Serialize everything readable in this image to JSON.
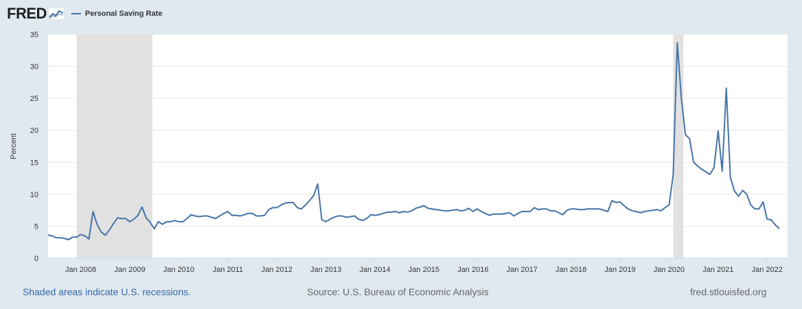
{
  "header": {
    "logo_text": "FRED",
    "logo_icon": "fred-chart-icon"
  },
  "footer": {
    "recession_note": "Shaded areas indicate U.S. recessions.",
    "source": "Source: U.S. Bureau of Economic Analysis",
    "site": "fred.stlouisfed.org"
  },
  "colors": {
    "series": "#4572a7",
    "recession": "#e1e1e1",
    "background": "#e1e9f0",
    "plot": "#ffffff",
    "grid": "#e6e6e6"
  },
  "chart_data": {
    "type": "line",
    "title": "",
    "xlabel": "",
    "ylabel": "Percent",
    "ylim": [
      0,
      35
    ],
    "yticks": [
      0,
      5,
      10,
      15,
      20,
      25,
      30,
      35
    ],
    "x_range": [
      "2007-05",
      "2022-06"
    ],
    "xticks": [
      {
        "date": "2008-01",
        "label": "Jan 2008"
      },
      {
        "date": "2009-01",
        "label": "Jan 2009"
      },
      {
        "date": "2010-01",
        "label": "Jan 2010"
      },
      {
        "date": "2011-01",
        "label": "Jan 2011"
      },
      {
        "date": "2012-01",
        "label": "Jan 2012"
      },
      {
        "date": "2013-01",
        "label": "Jan 2013"
      },
      {
        "date": "2014-01",
        "label": "Jan 2014"
      },
      {
        "date": "2015-01",
        "label": "Jan 2015"
      },
      {
        "date": "2016-01",
        "label": "Jan 2016"
      },
      {
        "date": "2017-01",
        "label": "Jan 2017"
      },
      {
        "date": "2018-01",
        "label": "Jan 2018"
      },
      {
        "date": "2019-01",
        "label": "Jan 2019"
      },
      {
        "date": "2020-01",
        "label": "Jan 2020"
      },
      {
        "date": "2021-01",
        "label": "Jan 2021"
      },
      {
        "date": "2022-01",
        "label": "Jan 2022"
      }
    ],
    "recessions": [
      {
        "start": "2007-12",
        "end": "2009-06"
      },
      {
        "start": "2020-02",
        "end": "2020-04"
      }
    ],
    "legend_position": "top-left",
    "grid": true,
    "series": [
      {
        "name": "Personal Saving Rate",
        "start": "2007-05",
        "frequency": "monthly",
        "values": [
          3.6,
          3.5,
          3.2,
          3.2,
          3.1,
          2.9,
          3.3,
          3.3,
          3.7,
          3.5,
          3.0,
          7.3,
          5.3,
          4.1,
          3.6,
          4.4,
          5.4,
          6.3,
          6.2,
          6.2,
          5.7,
          6.1,
          6.7,
          8.0,
          6.3,
          5.6,
          4.6,
          5.7,
          5.3,
          5.7,
          5.7,
          5.9,
          5.7,
          5.7,
          6.2,
          6.8,
          6.6,
          6.5,
          6.6,
          6.6,
          6.4,
          6.2,
          6.6,
          7.0,
          7.3,
          6.7,
          6.7,
          6.6,
          6.8,
          7.0,
          7.0,
          6.6,
          6.6,
          6.7,
          7.6,
          7.9,
          7.9,
          8.3,
          8.6,
          8.7,
          8.7,
          7.9,
          7.7,
          8.3,
          9.0,
          9.8,
          11.6,
          6.0,
          5.7,
          6.1,
          6.4,
          6.6,
          6.6,
          6.4,
          6.5,
          6.6,
          6.1,
          5.9,
          6.2,
          6.8,
          6.7,
          6.8,
          7.0,
          7.2,
          7.2,
          7.3,
          7.1,
          7.3,
          7.2,
          7.4,
          7.8,
          8.0,
          8.2,
          7.8,
          7.7,
          7.6,
          7.5,
          7.4,
          7.4,
          7.5,
          7.6,
          7.4,
          7.5,
          7.8,
          7.3,
          7.7,
          7.3,
          7.0,
          6.7,
          6.9,
          6.9,
          6.9,
          7.0,
          7.1,
          6.6,
          7.0,
          7.3,
          7.3,
          7.3,
          7.9,
          7.6,
          7.7,
          7.7,
          7.4,
          7.4,
          7.1,
          6.8,
          7.5,
          7.7,
          7.7,
          7.6,
          7.6,
          7.7,
          7.7,
          7.7,
          7.7,
          7.5,
          7.3,
          9.0,
          8.7,
          8.8,
          8.2,
          7.7,
          7.4,
          7.3,
          7.1,
          7.3,
          7.4,
          7.5,
          7.6,
          7.4,
          7.9,
          8.3,
          13.0,
          33.7,
          25.0,
          19.3,
          18.7,
          15.0,
          14.4,
          13.9,
          13.5,
          13.1,
          14.2,
          19.9,
          13.6,
          26.6,
          12.6,
          10.5,
          9.7,
          10.6,
          10.0,
          8.3,
          7.7,
          7.7,
          8.8,
          6.1,
          6.0,
          5.2,
          4.6
        ]
      }
    ]
  }
}
